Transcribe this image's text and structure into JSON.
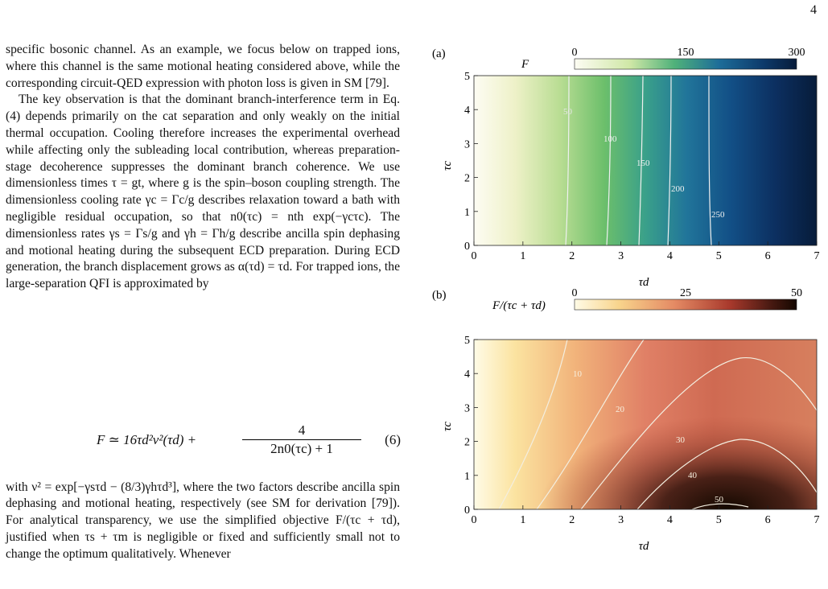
{
  "page_number": "4",
  "body": {
    "p1": "specific bosonic channel. As an example, we focus below on trapped ions, where this channel is the same motional heating considered above, while the corresponding circuit-QED expression with photon loss is given in SM [79].",
    "p2": "The key observation is that the dominant branch-interference term in Eq. (4) depends primarily on the cat separation and only weakly on the initial thermal occupation. Cooling therefore increases the experimental overhead while affecting only the subleading local contribution, whereas preparation-stage decoherence suppresses the dominant branch coherence. We use dimensionless times τ = gt, where g is the spin–boson coupling strength. The dimensionless cooling rate γc = Γc/g describes relaxation toward a bath with negligible residual occupation, so that n0(τc) = nth exp(−γcτc). The dimensionless rates γs = Γs/g and γh = Γh/g describe ancilla spin dephasing and motional heating during the subsequent ECD preparation. During ECD generation, the branch displacement grows as α(τd) = τd. For trapped ions, the large-separation QFI is approximated by",
    "p3": "with ν² = exp[−γsτd − (8/3)γhτd³], where the two factors describe ancilla spin dephasing and motional heating, respectively (see SM for derivation [79]). For analytical transparency, we use the simplified objective F/(τc + τd), justified when τs + τm is negligible or fixed and sufficiently small not to change the optimum qualitatively. Whenever"
  },
  "equation": {
    "lhs": "F ≃ 16τd²ν²(τd) +",
    "numerator": "4",
    "denominator": "2n0(τc) + 1",
    "comma": ",",
    "number": "(6)"
  },
  "figure": {
    "panel_a": {
      "tag": "(a)",
      "colorbar_label": "F",
      "colorbar_ticks": [
        "0",
        "150",
        "300"
      ],
      "x_label": "τd",
      "y_label": "τc",
      "x_ticks": [
        "0",
        "1",
        "2",
        "3",
        "4",
        "5",
        "6",
        "7"
      ],
      "y_ticks": [
        "0",
        "1",
        "2",
        "3",
        "4",
        "5"
      ],
      "contour_labels": [
        "50",
        "100",
        "150",
        "200",
        "250"
      ]
    },
    "panel_b": {
      "tag": "(b)",
      "colorbar_label": "F/(τc + τd)",
      "colorbar_ticks": [
        "0",
        "25",
        "50"
      ],
      "x_label": "τd",
      "y_label": "τc",
      "x_ticks": [
        "0",
        "1",
        "2",
        "3",
        "4",
        "5",
        "6",
        "7"
      ],
      "y_ticks": [
        "0",
        "1",
        "2",
        "3",
        "4",
        "5"
      ],
      "contour_labels": [
        "10",
        "20",
        "30",
        "40",
        "50"
      ]
    }
  }
}
